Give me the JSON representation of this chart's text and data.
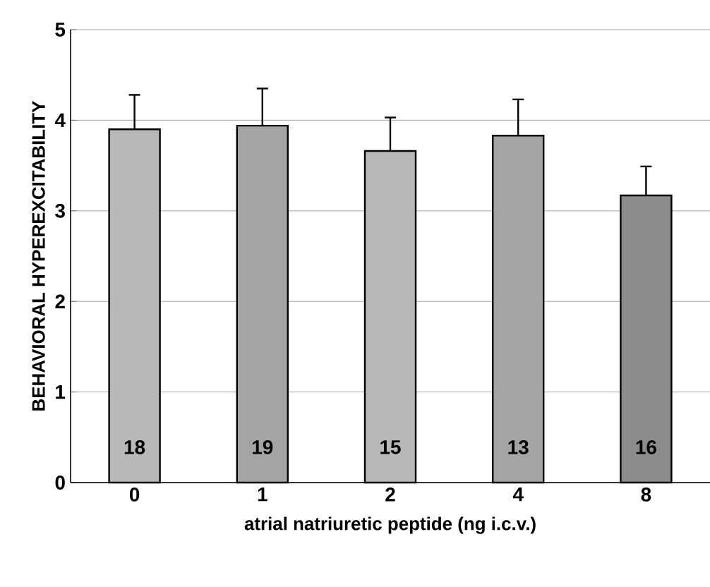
{
  "chart_data": {
    "type": "bar",
    "xlabel": "atrial natriuretic peptide (ng i.c.v.)",
    "ylabel": "BEHAVIORAL HYPEREXCITABILITY",
    "categories": [
      "0",
      "1",
      "2",
      "4",
      "8"
    ],
    "values": [
      3.9,
      3.94,
      3.66,
      3.83,
      3.17
    ],
    "errors": [
      [
        3.9,
        4.28
      ],
      [
        3.94,
        4.35
      ],
      [
        3.66,
        4.03
      ],
      [
        3.83,
        4.23
      ],
      [
        3.17,
        3.49
      ]
    ],
    "colors": [
      "#b8b8b8",
      "#a4a4a4",
      "#b8b8b8",
      "#a4a4a4",
      "#8c8c8c"
    ],
    "ylim": [
      0,
      5
    ],
    "yticks": [
      0,
      1,
      2,
      3,
      4,
      5
    ],
    "grid": "y",
    "annotations": [
      "18",
      "19",
      "15",
      "13",
      "16"
    ]
  }
}
